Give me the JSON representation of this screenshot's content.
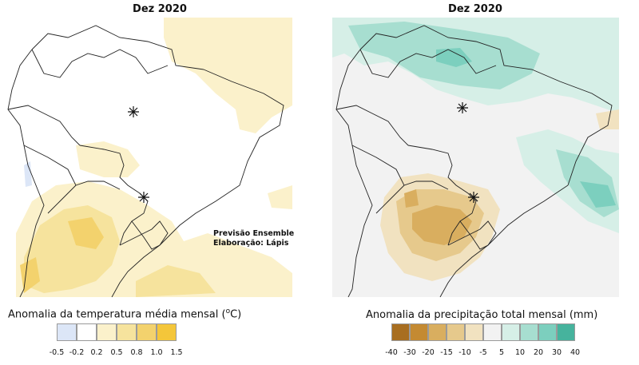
{
  "left_panel": {
    "title": "Dez 2020",
    "credit_line1": "Previsão Ensemble",
    "credit_line2": "Elaboração: Lápis",
    "legend_title": "Anomalia da temperatura média mensal (",
    "legend_unit_sup": "o",
    "legend_unit": "C)",
    "legend_colors": [
      "#dce6f7",
      "#ffffff",
      "#fbf1cb",
      "#f6e39d",
      "#f3d26d",
      "#f4c63a"
    ],
    "legend_ticks": [
      "-0.5",
      "-0.2",
      "0.2",
      "0.5",
      "0.8",
      "1.0",
      "1.5"
    ]
  },
  "right_panel": {
    "title": "Dez 2020",
    "legend_title": "Anomalia da precipitação total mensal (mm)",
    "legend_colors": [
      "#a86e20",
      "#c48a32",
      "#d9ae5f",
      "#e6c98c",
      "#f1e2c0",
      "#f2f2f2",
      "#d6efe7",
      "#a7ded0",
      "#7ccfbe",
      "#46b39d"
    ],
    "legend_ticks": [
      "-40",
      "-30",
      "-20",
      "-15",
      "-10",
      "-5",
      "5",
      "10",
      "20",
      "30",
      "40"
    ]
  },
  "markers": [
    "asterisk",
    "asterisk"
  ]
}
